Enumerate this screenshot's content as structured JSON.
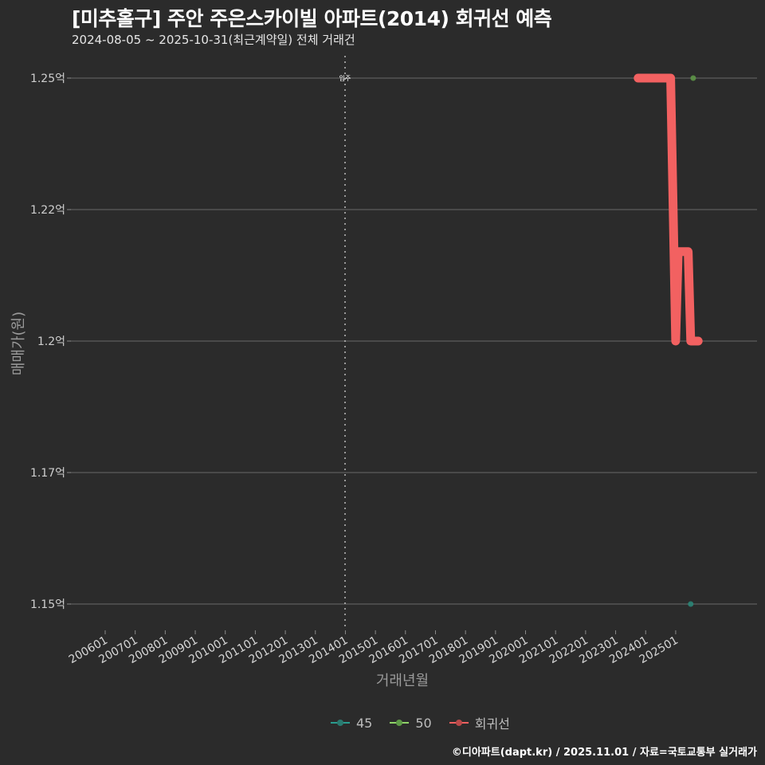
{
  "header": {
    "title": "[미추홀구] 주안 주은스카이빌 아파트(2014) 회귀선 예측",
    "subtitle": "2024-08-05 ~ 2025-10-31(최근계약일) 전체 거래건"
  },
  "axes": {
    "ylabel": "매매가(원)",
    "xlabel": "거래년월"
  },
  "legend": {
    "items": [
      {
        "label": "45",
        "color": "#2a9d8f"
      },
      {
        "label": "50",
        "color": "#8fd468"
      },
      {
        "label": "회귀선",
        "color": "#f06060"
      }
    ]
  },
  "annotation": {
    "label": "입주",
    "x": "201401"
  },
  "footer": {
    "credit": "©디아파트(dapt.kr) / 2025.11.01 / 자료=국토교통부 실거래가"
  },
  "colors": {
    "background": "#2b2b2b",
    "grid": "#5a5a5a",
    "regression": "#f26161",
    "series_45": "#2a9d8f",
    "series_50": "#6aa84f"
  },
  "chart_data": {
    "type": "line",
    "title": "[미추홀구] 주안 주은스카이빌 아파트(2014) 회귀선 예측",
    "subtitle": "2024-08-05 ~ 2025-10-31(최근계약일) 전체 거래건",
    "xlabel": "거래년월",
    "ylabel": "매매가(원)",
    "x_ticks": [
      "200601",
      "200701",
      "200801",
      "200901",
      "201001",
      "201101",
      "201201",
      "201301",
      "201401",
      "201501",
      "201601",
      "201701",
      "201801",
      "201901",
      "202001",
      "202101",
      "202201",
      "202301",
      "202401",
      "202501"
    ],
    "y_ticks": [
      {
        "value": 1.25,
        "label": "1.25억"
      },
      {
        "value": 1.225,
        "label": "1.22억"
      },
      {
        "value": 1.2,
        "label": "1.2억"
      },
      {
        "value": 1.175,
        "label": "1.17억"
      },
      {
        "value": 1.15,
        "label": "1.15억"
      }
    ],
    "ylim": [
      1.145,
      1.255
    ],
    "grid": true,
    "legend_position": "bottom",
    "vline": {
      "x": "201401",
      "label": "입주",
      "style": "dotted"
    },
    "series": [
      {
        "name": "45",
        "type": "scatter",
        "points": [
          {
            "x": "2025-07",
            "y": 1.15
          }
        ]
      },
      {
        "name": "50",
        "type": "scatter",
        "points": [
          {
            "x": "2025-08",
            "y": 1.25
          }
        ]
      },
      {
        "name": "회귀선",
        "type": "line",
        "points": [
          {
            "x": "2023-10",
            "y": 1.25
          },
          {
            "x": "2024-11",
            "y": 1.25
          },
          {
            "x": "2025-01",
            "y": 1.2
          },
          {
            "x": "2025-02",
            "y": 1.217
          },
          {
            "x": "2025-06",
            "y": 1.217
          },
          {
            "x": "2025-07",
            "y": 1.2
          },
          {
            "x": "2025-10",
            "y": 1.2
          }
        ]
      }
    ]
  }
}
